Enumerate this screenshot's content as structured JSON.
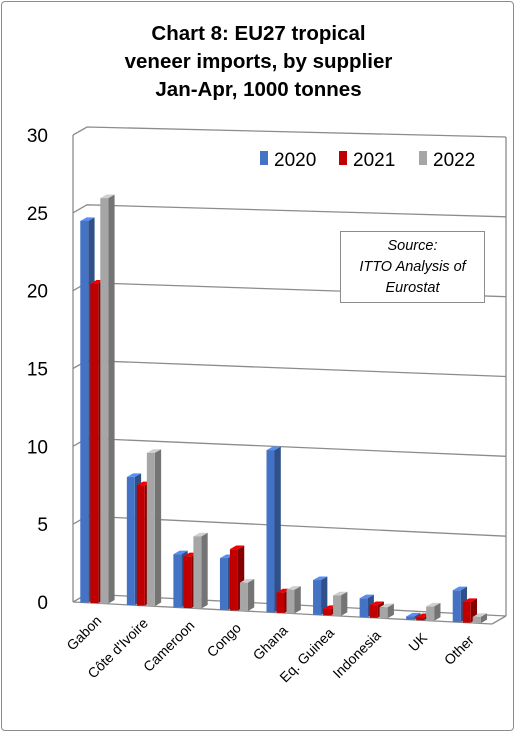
{
  "title_lines": [
    "Chart 8: EU27 tropical",
    "veneer imports, by supplier",
    "Jan-Apr, 1000 tonnes"
  ],
  "source_lines": [
    "Source:",
    "ITTO Analysis of",
    "Eurostat"
  ],
  "colors": {
    "2020": "#4472c4",
    "2021": "#c00000",
    "2022": "#a6a6a6"
  },
  "chart_data": {
    "type": "bar",
    "title": "Chart 8: EU27 tropical veneer imports, by supplier Jan-Apr, 1000 tonnes",
    "categories": [
      "Gabon",
      "Côte d'Ivoire",
      "Cameroon",
      "Congo",
      "Ghana",
      "Eq. Guinea",
      "Indonesia",
      "UK",
      "Other"
    ],
    "series": [
      {
        "name": "2020",
        "values": [
          24.5,
          8.2,
          3.4,
          3.3,
          10.3,
          2.2,
          1.2,
          0.2,
          2.0
        ]
      },
      {
        "name": "2021",
        "values": [
          20.5,
          7.7,
          3.3,
          3.9,
          1.3,
          0.4,
          0.8,
          0.2,
          1.3
        ]
      },
      {
        "name": "2022",
        "values": [
          26.0,
          9.8,
          4.6,
          1.8,
          1.5,
          1.3,
          0.7,
          0.9,
          0.4
        ]
      }
    ],
    "ylim": [
      0,
      30
    ],
    "yticks": [
      "0",
      "5",
      "10",
      "15",
      "20",
      "25",
      "30"
    ],
    "xlabel": "",
    "ylabel": "",
    "grid": true,
    "legend_position": "top-right"
  }
}
